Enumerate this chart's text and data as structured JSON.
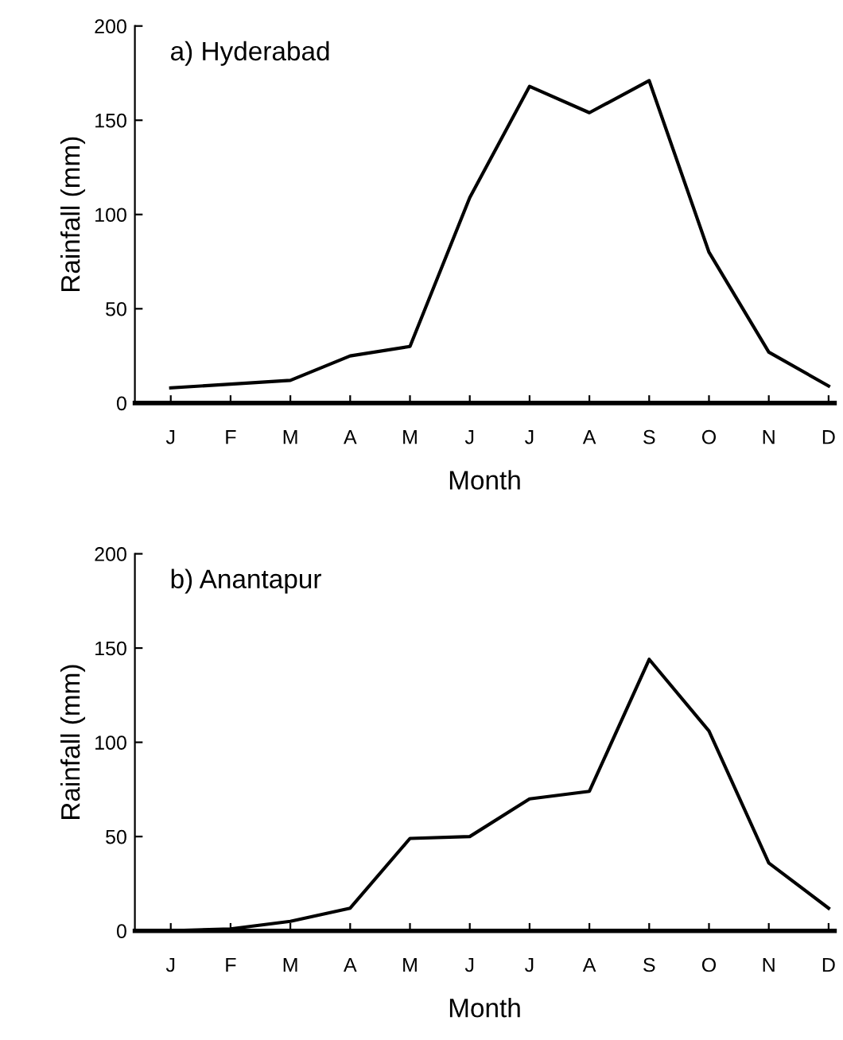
{
  "chart_data": [
    {
      "type": "line",
      "title": "a) Hyderabad",
      "xlabel": "Month",
      "ylabel": "Rainfall (mm)",
      "categories": [
        "J",
        "F",
        "M",
        "A",
        "M",
        "J",
        "J",
        "A",
        "S",
        "O",
        "N",
        "D"
      ],
      "series": [
        {
          "color": "#000000",
          "values": [
            8,
            10,
            12,
            25,
            30,
            109,
            168,
            154,
            171,
            80,
            27,
            9
          ]
        }
      ],
      "ylim": [
        0,
        200
      ],
      "yticks": [
        0,
        50,
        100,
        150,
        200
      ],
      "grid": false,
      "legend": false
    },
    {
      "type": "line",
      "title": "b) Anantapur",
      "xlabel": "Month",
      "ylabel": "Rainfall (mm)",
      "categories": [
        "J",
        "F",
        "M",
        "A",
        "M",
        "J",
        "J",
        "A",
        "S",
        "O",
        "N",
        "D"
      ],
      "series": [
        {
          "color": "#000000",
          "values": [
            0,
            1,
            5,
            12,
            49,
            50,
            70,
            74,
            144,
            106,
            36,
            12
          ]
        }
      ],
      "ylim": [
        0,
        200
      ],
      "yticks": [
        0,
        50,
        100,
        150,
        200
      ],
      "grid": false,
      "legend": false
    }
  ]
}
